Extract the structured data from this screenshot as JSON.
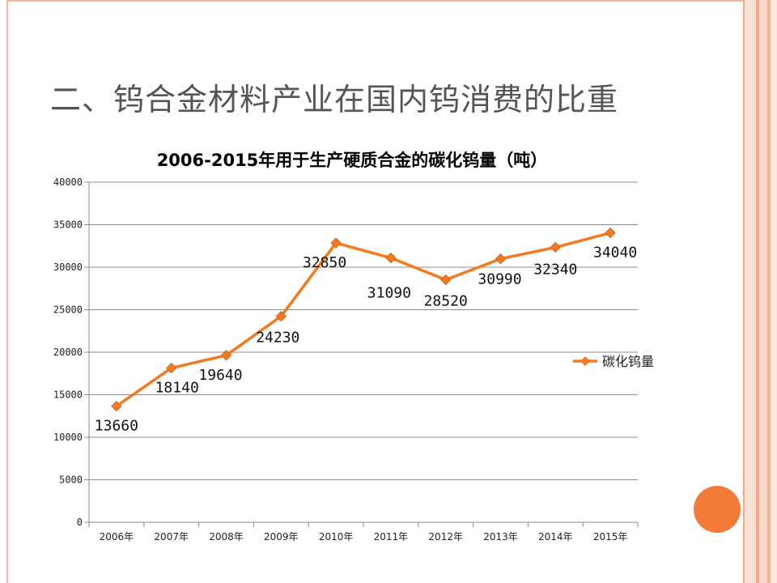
{
  "slide": {
    "title": "二、钨合金材料产业在国内钨消费的比重",
    "accent_color": "#f47a3a"
  },
  "chart_data": {
    "type": "line",
    "title": "2006-2015年用于生产硬质合金的碳化钨量（吨）",
    "categories": [
      "2006年",
      "2007年",
      "2008年",
      "2009年",
      "2010年",
      "2011年",
      "2012年",
      "2013年",
      "2014年",
      "2015年"
    ],
    "series": [
      {
        "name": "碳化钨量",
        "values": [
          13660,
          18140,
          19640,
          24230,
          32850,
          31090,
          28520,
          30990,
          32340,
          34040
        ],
        "color": "#f47a20",
        "marker": "diamond"
      }
    ],
    "data_labels": [
      "13660",
      "18140",
      "19640",
      "24230",
      "32850",
      "31090",
      "28520",
      "30990",
      "32340",
      "34040"
    ],
    "ylim": [
      0,
      40000
    ],
    "yticks": [
      0,
      5000,
      10000,
      15000,
      20000,
      25000,
      30000,
      35000,
      40000
    ],
    "ytick_labels": [
      "0",
      "5000",
      "10000",
      "15000",
      "20000",
      "25000",
      "30000",
      "35000",
      "40000"
    ],
    "grid": true,
    "legend_position": "right"
  }
}
